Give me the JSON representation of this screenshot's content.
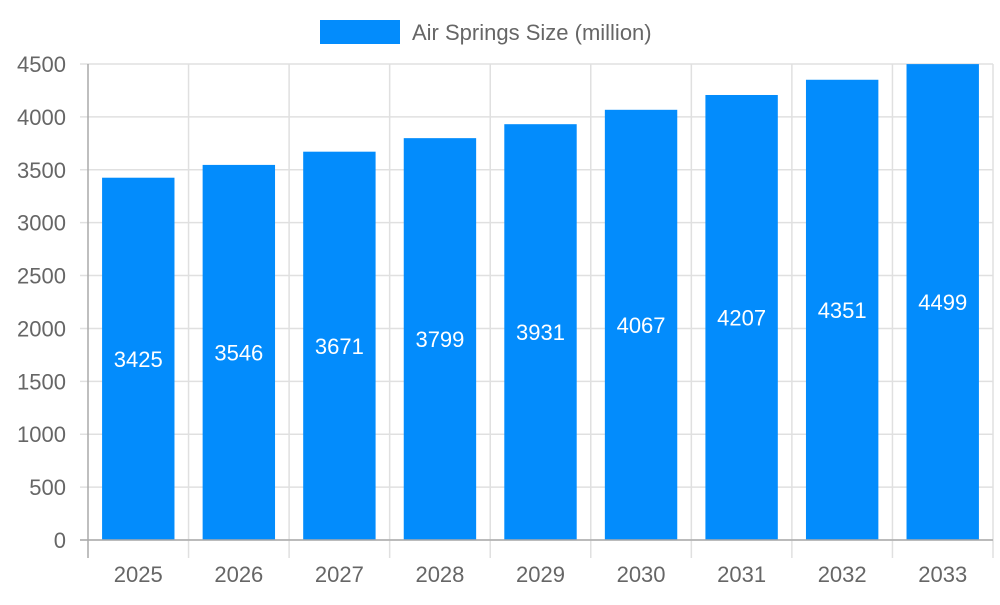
{
  "chart_data": {
    "type": "bar",
    "title": "",
    "xlabel": "",
    "ylabel": "",
    "legend": {
      "position": "top",
      "entries": [
        "Air Springs Size (million)"
      ]
    },
    "categories": [
      "2025",
      "2026",
      "2027",
      "2028",
      "2029",
      "2030",
      "2031",
      "2032",
      "2033"
    ],
    "series": [
      {
        "name": "Air Springs Size (million)",
        "values": [
          3425,
          3546,
          3671,
          3799,
          3931,
          4067,
          4207,
          4351,
          4499
        ],
        "color": "#038cfc"
      }
    ],
    "ylim": [
      0,
      4500
    ],
    "yticks": [
      "0",
      "500",
      "1000",
      "1500",
      "2000",
      "2500",
      "3000",
      "3500",
      "4000",
      "4500"
    ],
    "grid": true,
    "data_labels": true
  }
}
